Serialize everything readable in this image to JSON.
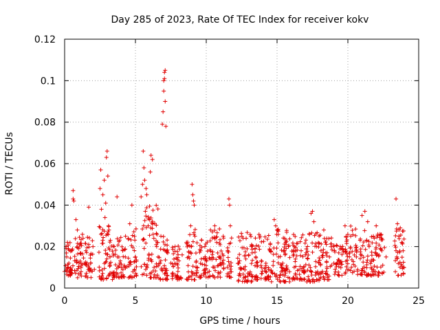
{
  "chart_data": {
    "type": "scatter",
    "title": "Day 285 of 2023, Rate Of TEC Index for receiver kokv",
    "xlabel": "GPS time / hours",
    "ylabel": "ROTI / TECUs",
    "xlim": [
      0,
      25
    ],
    "ylim": [
      0,
      0.12
    ],
    "xticks": [
      "0",
      "5",
      "10",
      "15",
      "20",
      "25"
    ],
    "yticks": [
      "0",
      "0.02",
      "0.04",
      "0.06",
      "0.08",
      "0.1",
      "0.12"
    ],
    "grid": true,
    "marker": "+",
    "color": "#e00000",
    "series": [
      {
        "x": [
          0.0,
          0.1,
          0.15,
          0.2,
          0.3,
          0.5,
          0.6,
          0.6,
          0.65,
          0.8,
          0.9,
          1.0,
          1.1,
          1.3,
          1.5,
          1.7,
          1.7,
          1.85,
          2.0,
          2.1,
          2.5,
          2.55,
          2.6,
          2.7,
          2.8,
          2.85,
          2.9,
          2.95,
          3.0,
          3.05,
          3.1,
          3.2,
          3.5,
          3.7,
          3.9,
          4.1,
          4.3,
          4.6,
          4.75,
          5.0,
          5.4,
          5.5,
          5.55,
          5.6,
          5.65,
          5.7,
          5.75,
          5.8,
          5.9,
          6.0,
          6.05,
          6.1,
          6.2,
          6.3,
          6.5,
          6.6,
          6.8,
          6.9,
          6.95,
          7.0,
          7.0,
          7.05,
          7.05,
          7.1,
          7.1,
          7.15,
          7.2,
          7.5,
          7.8,
          8.0,
          8.3,
          8.6,
          8.9,
          9.0,
          9.05,
          9.1,
          9.15,
          9.2,
          9.3,
          9.6,
          9.9,
          10.3,
          10.6,
          11.0,
          11.2,
          11.5,
          11.6,
          11.65,
          11.7,
          12.3,
          12.6,
          13.0,
          13.2,
          13.5,
          13.8,
          14.2,
          14.5,
          14.8,
          14.9,
          15.0,
          15.1,
          15.4,
          15.8,
          16.3,
          16.7,
          17.0,
          17.4,
          17.5,
          17.6,
          17.8,
          18.1,
          18.3,
          18.7,
          19.0,
          19.4,
          19.8,
          20.2,
          20.6,
          21.0,
          21.2,
          21.4,
          21.5,
          21.8,
          22.0,
          22.4,
          22.7,
          23.4,
          23.5,
          23.6,
          23.7,
          23.8,
          23.9
        ],
        "y": [
          0.008,
          0.02,
          0.015,
          0.022,
          0.012,
          0.018,
          0.047,
          0.043,
          0.042,
          0.033,
          0.028,
          0.019,
          0.013,
          0.024,
          0.018,
          0.039,
          0.021,
          0.012,
          0.02,
          0.009,
          0.048,
          0.057,
          0.038,
          0.045,
          0.052,
          0.034,
          0.041,
          0.063,
          0.066,
          0.054,
          0.03,
          0.015,
          0.02,
          0.044,
          0.012,
          0.018,
          0.025,
          0.031,
          0.04,
          0.015,
          0.044,
          0.05,
          0.066,
          0.058,
          0.052,
          0.037,
          0.048,
          0.045,
          0.03,
          0.033,
          0.056,
          0.064,
          0.062,
          0.024,
          0.02,
          0.015,
          0.025,
          0.079,
          0.085,
          0.095,
          0.1,
          0.101,
          0.104,
          0.105,
          0.09,
          0.078,
          0.018,
          0.012,
          0.02,
          0.008,
          0.016,
          0.022,
          0.03,
          0.05,
          0.045,
          0.042,
          0.04,
          0.025,
          0.013,
          0.018,
          0.02,
          0.028,
          0.03,
          0.015,
          0.025,
          0.01,
          0.043,
          0.04,
          0.03,
          0.012,
          0.024,
          0.016,
          0.02,
          0.015,
          0.025,
          0.01,
          0.018,
          0.033,
          0.03,
          0.028,
          0.015,
          0.012,
          0.02,
          0.014,
          0.018,
          0.016,
          0.036,
          0.037,
          0.032,
          0.02,
          0.018,
          0.028,
          0.015,
          0.02,
          0.012,
          0.03,
          0.025,
          0.015,
          0.035,
          0.037,
          0.032,
          0.02,
          0.025,
          0.03,
          0.018,
          0.015,
          0.043,
          0.031,
          0.025,
          0.029,
          0.022,
          0.018
        ]
      }
    ],
    "bands": [
      [
        0.0,
        0.6,
        0.006,
        0.022
      ],
      [
        0.7,
        1.4,
        0.005,
        0.026
      ],
      [
        1.4,
        2.0,
        0.005,
        0.025
      ],
      [
        2.4,
        3.4,
        0.004,
        0.03
      ],
      [
        3.4,
        4.3,
        0.005,
        0.025
      ],
      [
        4.4,
        5.1,
        0.005,
        0.03
      ],
      [
        5.4,
        6.6,
        0.005,
        0.04
      ],
      [
        6.6,
        7.3,
        0.004,
        0.026
      ],
      [
        7.6,
        8.3,
        0.004,
        0.022
      ],
      [
        8.6,
        9.4,
        0.004,
        0.03
      ],
      [
        9.5,
        10.3,
        0.005,
        0.024
      ],
      [
        10.4,
        11.3,
        0.005,
        0.03
      ],
      [
        11.4,
        11.8,
        0.005,
        0.026
      ],
      [
        12.2,
        13.3,
        0.003,
        0.028
      ],
      [
        13.4,
        14.6,
        0.004,
        0.026
      ],
      [
        14.6,
        15.9,
        0.003,
        0.032
      ],
      [
        16.0,
        17.0,
        0.004,
        0.026
      ],
      [
        17.0,
        18.0,
        0.003,
        0.028
      ],
      [
        18.0,
        18.9,
        0.004,
        0.026
      ],
      [
        19.0,
        19.7,
        0.006,
        0.024
      ],
      [
        19.8,
        20.7,
        0.006,
        0.03
      ],
      [
        20.8,
        21.5,
        0.006,
        0.028
      ],
      [
        21.6,
        22.6,
        0.006,
        0.026
      ],
      [
        23.3,
        24.0,
        0.006,
        0.03
      ]
    ]
  }
}
